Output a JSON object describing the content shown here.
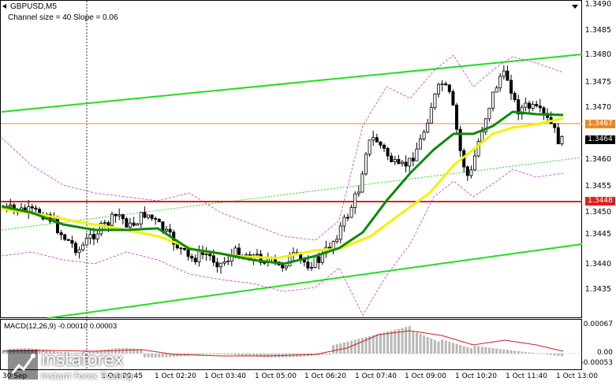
{
  "header": {
    "symbol": "GBPUSD,M5",
    "indicator": "Channel size = 40 Slope = 0.06"
  },
  "price_axis": {
    "ticks": [
      "1.3490",
      "1.3485",
      "1.3480",
      "1.3475",
      "1.3470",
      "1.3460",
      "1.3455",
      "1.3450",
      "1.3445",
      "1.3440",
      "1.3435"
    ],
    "tags": {
      "level_upper": "1.3467",
      "current": "1.3464",
      "level_lower": "1.3448"
    }
  },
  "macd": {
    "label": "MACD(12,26,9) -0.00010 0.00003",
    "ticks": [
      "0.00067",
      "0.00",
      "-0.00053"
    ]
  },
  "time_axis": {
    "ticks": [
      "1 Oct 00:45",
      "1 Oct 02:20",
      "1 Oct 03:40",
      "1 Oct 05:00",
      "1 Oct 06:20",
      "1 Oct 07:40",
      "1 Oct 09:00",
      "1 Oct 10:20",
      "1 Oct 11:40",
      "1 Oct 13:00"
    ],
    "partial_left": "30 Sep"
  },
  "watermark": {
    "name": "instaforex",
    "tagline": "Instant Forex Trading"
  },
  "colors": {
    "channel": "#22dd22",
    "ma_fast": "#0a8a0a",
    "ma_slow": "#f2f200",
    "bollinger": "#cc33cc",
    "level_red": "#e02020",
    "level_orange": "#e88a2a",
    "macd_signal": "#cc2020",
    "macd_hist": "#b8b8b8"
  }
}
